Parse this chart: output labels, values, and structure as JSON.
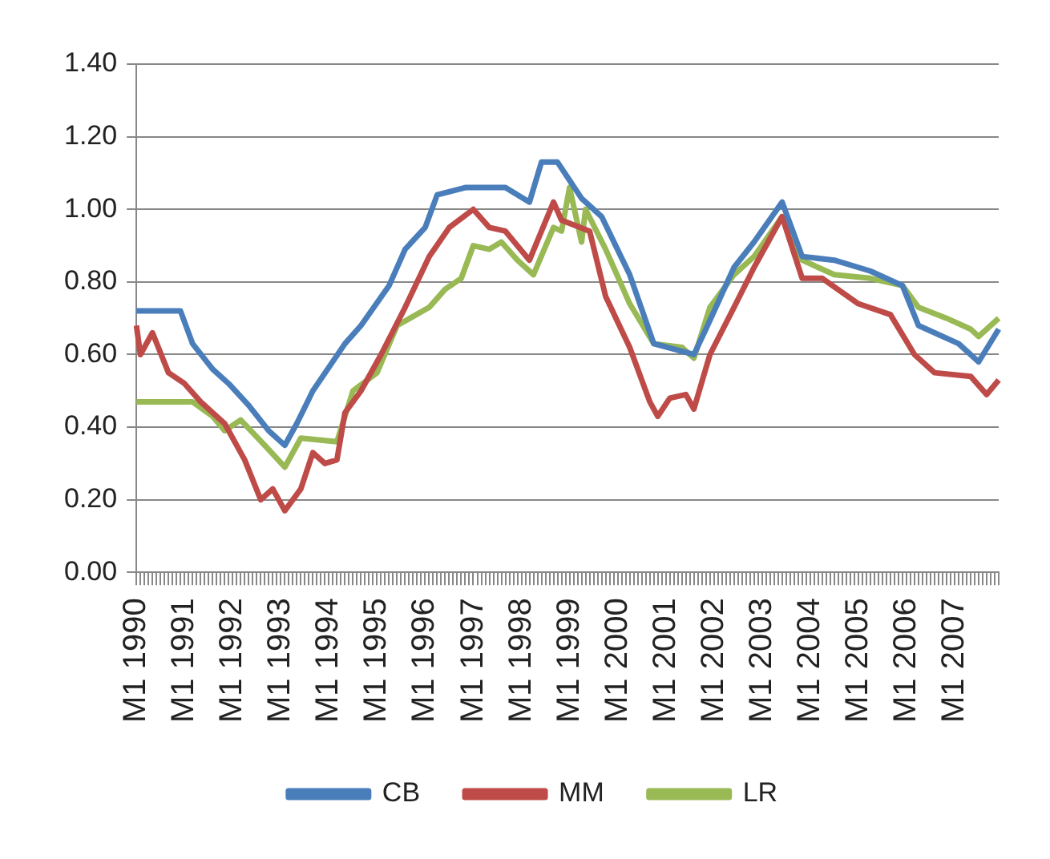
{
  "chart_data": {
    "type": "line",
    "categories": [
      "M1 1990",
      null,
      null,
      null,
      null,
      null,
      null,
      null,
      null,
      null,
      null,
      null,
      "M1 1991",
      null,
      null,
      null,
      null,
      null,
      null,
      null,
      null,
      null,
      null,
      null,
      "M1 1992",
      null,
      null,
      null,
      null,
      null,
      null,
      null,
      null,
      null,
      null,
      null,
      "M1 1993",
      null,
      null,
      null,
      null,
      null,
      null,
      null,
      null,
      null,
      null,
      null,
      "M1 1994",
      null,
      null,
      null,
      null,
      null,
      null,
      null,
      null,
      null,
      null,
      null,
      "M1 1995",
      null,
      null,
      null,
      null,
      null,
      null,
      null,
      null,
      null,
      null,
      null,
      "M1 1996",
      null,
      null,
      null,
      null,
      null,
      null,
      null,
      null,
      null,
      null,
      null,
      "M1 1997",
      null,
      null,
      null,
      null,
      null,
      null,
      null,
      null,
      null,
      null,
      null,
      "M1 1998",
      null,
      null,
      null,
      null,
      null,
      null,
      null,
      null,
      null,
      null,
      null,
      "M1 1999",
      null,
      null,
      null,
      null,
      null,
      null,
      null,
      null,
      null,
      null,
      null,
      "M1 2000",
      null,
      null,
      null,
      null,
      null,
      null,
      null,
      null,
      null,
      null,
      null,
      "M1 2001",
      null,
      null,
      null,
      null,
      null,
      null,
      null,
      null,
      null,
      null,
      null,
      "M1 2002",
      null,
      null,
      null,
      null,
      null,
      null,
      null,
      null,
      null,
      null,
      null,
      "M1 2003",
      null,
      null,
      null,
      null,
      null,
      null,
      null,
      null,
      null,
      null,
      null,
      "M1 2004",
      null,
      null,
      null,
      null,
      null,
      null,
      null,
      null,
      null,
      null,
      null,
      "M1 2005",
      null,
      null,
      null,
      null,
      null,
      null,
      null,
      null,
      null,
      null,
      null,
      "M1 2006",
      null,
      null,
      null,
      null,
      null,
      null,
      null,
      null,
      null,
      null,
      null,
      "M1 2007",
      null,
      null,
      null,
      null,
      null,
      null,
      null,
      null,
      null,
      null,
      null
    ],
    "ylim": [
      0,
      1.4
    ],
    "yticks": [
      {
        "value": 0,
        "label": "0.00"
      },
      {
        "value": 0.2,
        "label": "0.20"
      },
      {
        "value": 0.4,
        "label": "0.40"
      },
      {
        "value": 0.6,
        "label": "0.60"
      },
      {
        "value": 0.8,
        "label": "0.80"
      },
      {
        "value": 1,
        "label": "1.00"
      },
      {
        "value": 1.2,
        "label": "1.20"
      },
      {
        "value": 1.4,
        "label": "1.40"
      }
    ],
    "grid": "y",
    "legend": "bottom",
    "marker": "none",
    "line_style": "solid",
    "series": [
      {
        "name": "CB",
        "color": "#4a7ebb",
        "values": [
          0.72,
          null,
          null,
          null,
          null,
          null,
          null,
          null,
          null,
          null,
          null,
          0.72,
          null,
          null,
          0.63,
          null,
          null,
          null,
          null,
          0.56,
          null,
          null,
          null,
          0.52,
          null,
          null,
          null,
          null,
          0.46,
          null,
          null,
          null,
          null,
          0.39,
          null,
          null,
          null,
          0.35,
          null,
          null,
          0.41,
          null,
          null,
          null,
          0.5,
          null,
          null,
          null,
          null,
          null,
          null,
          null,
          0.63,
          null,
          null,
          null,
          0.68,
          null,
          null,
          null,
          null,
          null,
          null,
          0.79,
          null,
          null,
          null,
          0.89,
          null,
          null,
          null,
          null,
          0.95,
          null,
          null,
          1.04,
          null,
          null,
          null,
          null,
          null,
          null,
          1.06,
          null,
          null,
          null,
          null,
          null,
          null,
          null,
          null,
          null,
          1.06,
          null,
          null,
          null,
          null,
          null,
          1.02,
          null,
          null,
          1.13,
          null,
          null,
          null,
          1.13,
          null,
          null,
          1.08,
          null,
          null,
          1.03,
          null,
          null,
          null,
          null,
          0.98,
          null,
          null,
          null,
          null,
          null,
          null,
          0.82,
          null,
          null,
          null,
          null,
          null,
          0.63,
          null,
          null,
          null,
          null,
          null,
          null,
          null,
          null,
          null,
          0.6,
          null,
          null,
          0.67,
          null,
          null,
          null,
          null,
          null,
          null,
          0.84,
          null,
          null,
          null,
          null,
          0.91,
          null,
          null,
          null,
          null,
          null,
          null,
          1.02,
          null,
          null,
          null,
          null,
          0.87,
          null,
          null,
          null,
          null,
          null,
          null,
          null,
          0.86,
          null,
          null,
          null,
          null,
          null,
          null,
          null,
          null,
          0.83,
          null,
          null,
          null,
          null,
          null,
          null,
          null,
          0.79,
          null,
          null,
          null,
          0.68,
          null,
          null,
          null,
          null,
          null,
          null,
          null,
          null,
          null,
          0.63,
          null,
          null,
          null,
          null,
          0.58,
          null,
          null,
          null,
          null,
          0.67
        ]
      },
      {
        "name": "MM",
        "color": "#be4b48",
        "values": [
          0.68,
          0.6,
          null,
          null,
          0.66,
          null,
          null,
          null,
          0.55,
          null,
          null,
          null,
          0.52,
          null,
          null,
          null,
          0.47,
          null,
          null,
          null,
          null,
          null,
          0.41,
          null,
          null,
          null,
          null,
          0.31,
          null,
          null,
          null,
          0.2,
          null,
          null,
          0.23,
          null,
          null,
          0.17,
          null,
          null,
          null,
          0.23,
          null,
          null,
          0.33,
          null,
          null,
          0.3,
          null,
          null,
          0.31,
          null,
          0.44,
          null,
          null,
          null,
          0.5,
          null,
          null,
          null,
          null,
          0.6,
          null,
          null,
          null,
          null,
          null,
          0.73,
          null,
          null,
          null,
          null,
          null,
          0.87,
          null,
          null,
          null,
          null,
          0.95,
          null,
          null,
          null,
          null,
          null,
          1.0,
          null,
          null,
          null,
          0.95,
          null,
          null,
          null,
          0.94,
          null,
          null,
          null,
          null,
          null,
          0.86,
          null,
          null,
          0.94,
          null,
          null,
          1.02,
          null,
          0.97,
          null,
          null,
          null,
          null,
          null,
          null,
          0.94,
          null,
          null,
          null,
          0.76,
          null,
          null,
          null,
          null,
          null,
          0.62,
          null,
          null,
          null,
          null,
          0.47,
          null,
          0.43,
          null,
          null,
          0.48,
          null,
          null,
          null,
          0.49,
          null,
          0.45,
          null,
          null,
          null,
          0.6,
          null,
          null,
          null,
          null,
          null,
          0.73,
          null,
          null,
          null,
          null,
          0.84,
          null,
          null,
          null,
          null,
          null,
          null,
          0.98,
          null,
          null,
          null,
          null,
          0.81,
          null,
          null,
          null,
          null,
          0.81,
          null,
          null,
          null,
          null,
          null,
          null,
          null,
          null,
          0.74,
          null,
          null,
          null,
          null,
          null,
          null,
          null,
          0.71,
          null,
          null,
          null,
          null,
          null,
          0.6,
          null,
          null,
          null,
          null,
          0.55,
          null,
          null,
          null,
          null,
          null,
          null,
          null,
          null,
          0.54,
          null,
          null,
          null,
          0.49,
          null,
          null,
          0.53
        ]
      },
      {
        "name": "LR",
        "color": "#98b954",
        "values": [
          0.47,
          null,
          null,
          null,
          null,
          null,
          null,
          null,
          null,
          null,
          null,
          null,
          null,
          null,
          0.47,
          null,
          null,
          null,
          null,
          0.43,
          null,
          null,
          0.39,
          null,
          null,
          null,
          0.42,
          null,
          null,
          null,
          null,
          null,
          0.35,
          null,
          null,
          null,
          null,
          0.29,
          null,
          null,
          null,
          0.37,
          null,
          null,
          null,
          null,
          null,
          null,
          null,
          null,
          0.36,
          null,
          null,
          null,
          0.5,
          null,
          null,
          null,
          null,
          null,
          0.55,
          null,
          null,
          null,
          null,
          0.68,
          null,
          null,
          null,
          null,
          null,
          null,
          null,
          0.73,
          null,
          null,
          null,
          0.78,
          null,
          null,
          null,
          0.81,
          null,
          null,
          0.9,
          null,
          null,
          null,
          0.89,
          null,
          null,
          0.91,
          null,
          null,
          null,
          0.86,
          null,
          null,
          null,
          0.82,
          null,
          null,
          null,
          null,
          0.95,
          null,
          0.94,
          null,
          1.06,
          null,
          null,
          0.91,
          1.0,
          null,
          null,
          null,
          null,
          0.89,
          null,
          null,
          null,
          null,
          null,
          0.74,
          null,
          null,
          null,
          null,
          null,
          0.63,
          null,
          null,
          null,
          null,
          null,
          null,
          0.62,
          null,
          null,
          0.59,
          null,
          null,
          null,
          0.73,
          null,
          null,
          null,
          null,
          null,
          0.82,
          null,
          null,
          null,
          null,
          0.87,
          null,
          null,
          null,
          null,
          null,
          null,
          0.98,
          null,
          null,
          null,
          null,
          0.86,
          null,
          null,
          null,
          null,
          null,
          null,
          null,
          0.82,
          null,
          null,
          null,
          null,
          null,
          null,
          null,
          null,
          0.81,
          null,
          null,
          null,
          null,
          null,
          null,
          null,
          0.79,
          null,
          null,
          null,
          0.73,
          null,
          null,
          null,
          null,
          null,
          null,
          0.7,
          null,
          null,
          null,
          null,
          null,
          0.67,
          null,
          0.65,
          null,
          null,
          null,
          null,
          0.7
        ]
      }
    ]
  }
}
